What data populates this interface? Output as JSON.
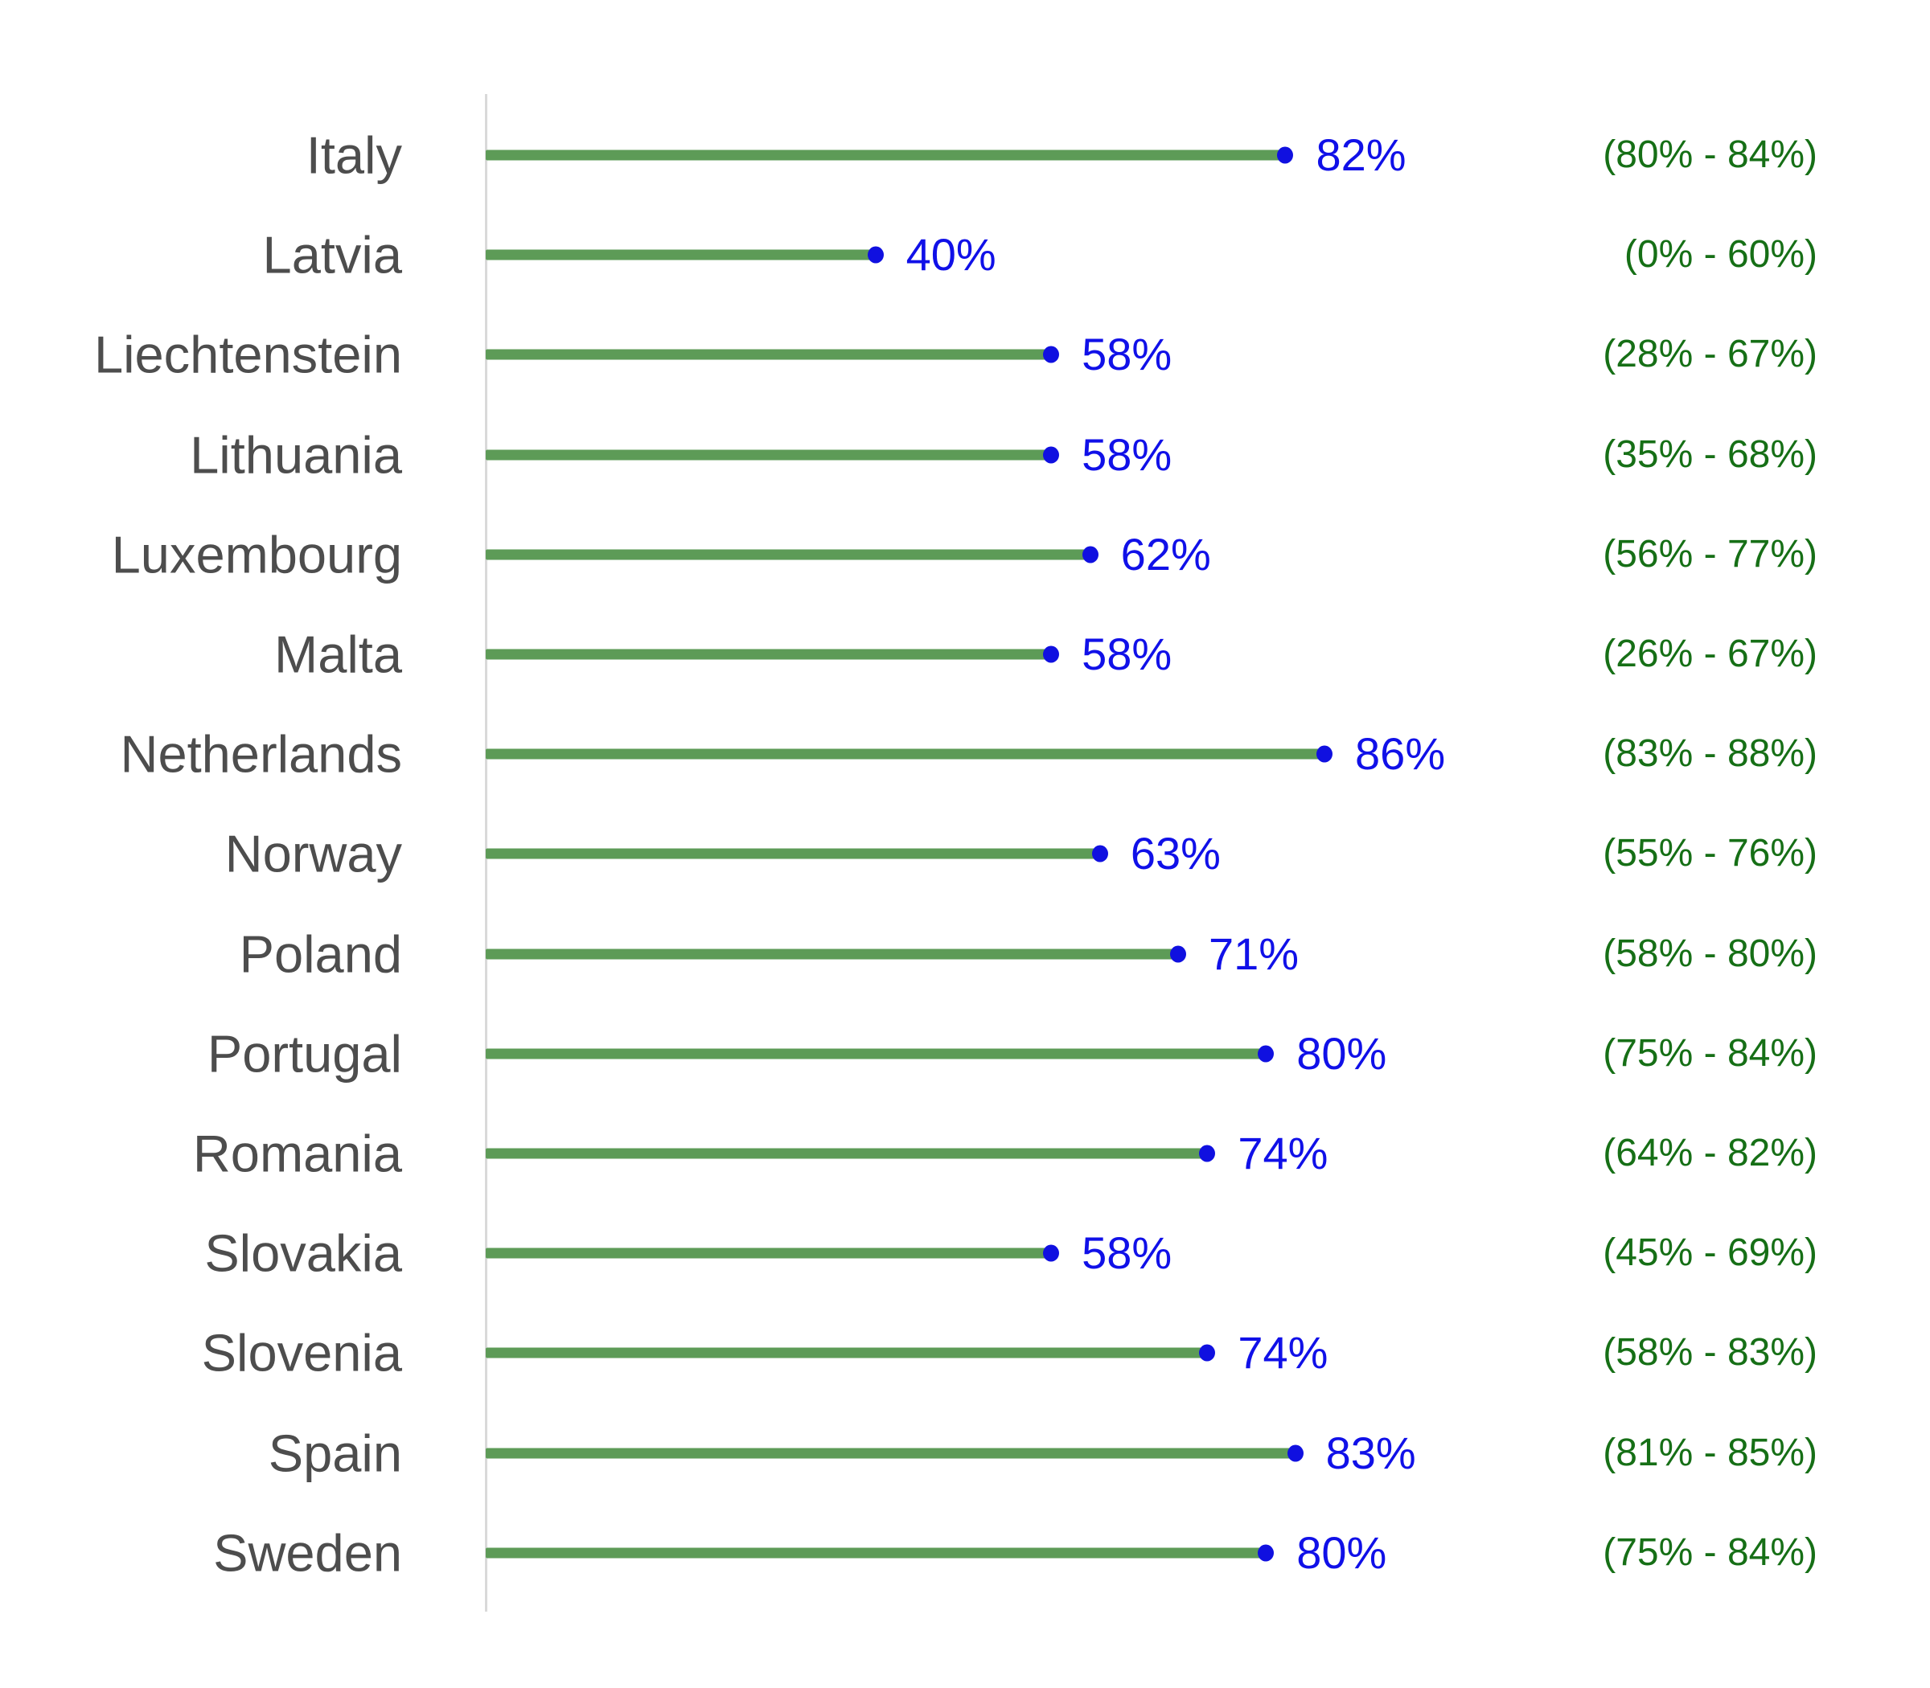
{
  "chart_data": {
    "type": "bar",
    "subtype": "lollipop",
    "orientation": "horizontal",
    "categories": [
      "Italy",
      "Latvia",
      "Liechtenstein",
      "Lithuania",
      "Luxembourg",
      "Malta",
      "Netherlands",
      "Norway",
      "Poland",
      "Portugal",
      "Romania",
      "Slovakia",
      "Slovenia",
      "Spain",
      "Sweden"
    ],
    "values": [
      82,
      40,
      58,
      58,
      62,
      58,
      86,
      63,
      71,
      80,
      74,
      58,
      74,
      83,
      80
    ],
    "value_labels": [
      "82%",
      "40%",
      "58%",
      "58%",
      "62%",
      "58%",
      "86%",
      "63%",
      "71%",
      "80%",
      "74%",
      "58%",
      "74%",
      "83%",
      "80%"
    ],
    "ci_low": [
      80,
      0,
      28,
      35,
      56,
      26,
      83,
      55,
      58,
      75,
      64,
      45,
      58,
      81,
      75
    ],
    "ci_high": [
      84,
      60,
      67,
      68,
      77,
      67,
      88,
      76,
      80,
      84,
      82,
      69,
      83,
      85,
      84
    ],
    "ci_labels": [
      "(80% - 84%)",
      "(0% - 60%)",
      "(28% - 67%)",
      "(35% - 68%)",
      "(56% - 77%)",
      "(26% - 67%)",
      "(83% - 88%)",
      "(55% - 76%)",
      "(58% - 80%)",
      "(75% - 84%)",
      "(64% - 82%)",
      "(45% - 69%)",
      "(58% - 83%)",
      "(81% - 85%)",
      "(75% - 84%)"
    ],
    "xlim": [
      0,
      100
    ],
    "grid": "off",
    "legend": "none"
  },
  "colors": {
    "stem_green": "#5d9b57",
    "dot_blue": "#1010e0",
    "value_blue": "#1010e8",
    "ci_green": "#166f16",
    "label_gray": "#4d4d4d",
    "axis_gray": "#d9d9d9",
    "background": "#ffffff"
  }
}
